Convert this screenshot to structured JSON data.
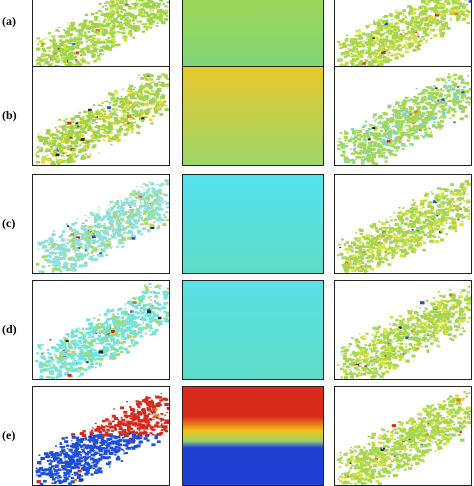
{
  "rows": [
    {
      "label": "(a)",
      "left_tone": "#9ed54a",
      "left_alt": "#c9e23c",
      "mid_top": "#a8d84a",
      "mid_bottom": "#7fd47a",
      "right_tone": "#a9d54c",
      "right_alt": "#d7e243"
    },
    {
      "label": "(b)",
      "left_tone": "#9fd34c",
      "left_alt": "#e7d835",
      "mid_top": "#e8c82e",
      "mid_bottom": "#9fd66a",
      "right_tone": "#a5d654",
      "right_alt": "#7fd6bf"
    },
    {
      "label": "(c)",
      "left_tone": "#8fe0d9",
      "left_alt": "#a9d96a",
      "mid_top": "#55e3f1",
      "mid_bottom": "#5fdbc4",
      "right_tone": "#a6d650",
      "right_alt": "#d9e23f"
    },
    {
      "label": "(d)",
      "left_tone": "#74e3dd",
      "left_alt": "#a6d96e",
      "mid_top": "#5de0e5",
      "mid_bottom": "#5fdcc8",
      "right_tone": "#a3d652",
      "right_alt": "#d6e240"
    },
    {
      "label": "(e)",
      "left_tone": "#d62a1e",
      "left_alt": "#1f4fd8",
      "mid_top": "#d82b1c",
      "mid_bottom": "#1e3fd1",
      "right_tone": "#a7d651",
      "right_alt": "#d5e241"
    }
  ]
}
